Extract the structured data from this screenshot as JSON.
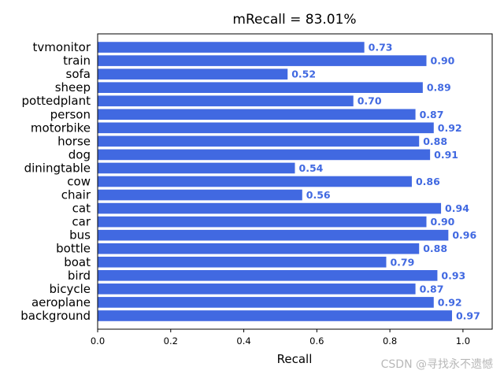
{
  "chart_data": {
    "type": "bar",
    "orientation": "horizontal",
    "title": "mRecall = 83.01%",
    "xlabel": "Recall",
    "ylabel": "",
    "xlim": [
      0,
      1.08
    ],
    "xticks": [
      "0.0",
      "0.2",
      "0.4",
      "0.6",
      "0.8",
      "1.0"
    ],
    "grid": false,
    "bar_color": "#4169e1",
    "label_color": "#4169e1",
    "categories": [
      "tvmonitor",
      "train",
      "sofa",
      "sheep",
      "pottedplant",
      "person",
      "motorbike",
      "horse",
      "dog",
      "diningtable",
      "cow",
      "chair",
      "cat",
      "car",
      "bus",
      "bottle",
      "boat",
      "bird",
      "bicycle",
      "aeroplane",
      "background"
    ],
    "values": [
      0.73,
      0.9,
      0.52,
      0.89,
      0.7,
      0.87,
      0.92,
      0.88,
      0.91,
      0.54,
      0.86,
      0.56,
      0.94,
      0.9,
      0.96,
      0.88,
      0.79,
      0.93,
      0.87,
      0.92,
      0.97
    ],
    "value_labels": [
      "0.73",
      "0.90",
      "0.52",
      "0.89",
      "0.70",
      "0.87",
      "0.92",
      "0.88",
      "0.91",
      "0.54",
      "0.86",
      "0.56",
      "0.94",
      "0.90",
      "0.96",
      "0.88",
      "0.79",
      "0.93",
      "0.87",
      "0.92",
      "0.97"
    ]
  },
  "watermark": "CSDN @寻找永不遗憾"
}
